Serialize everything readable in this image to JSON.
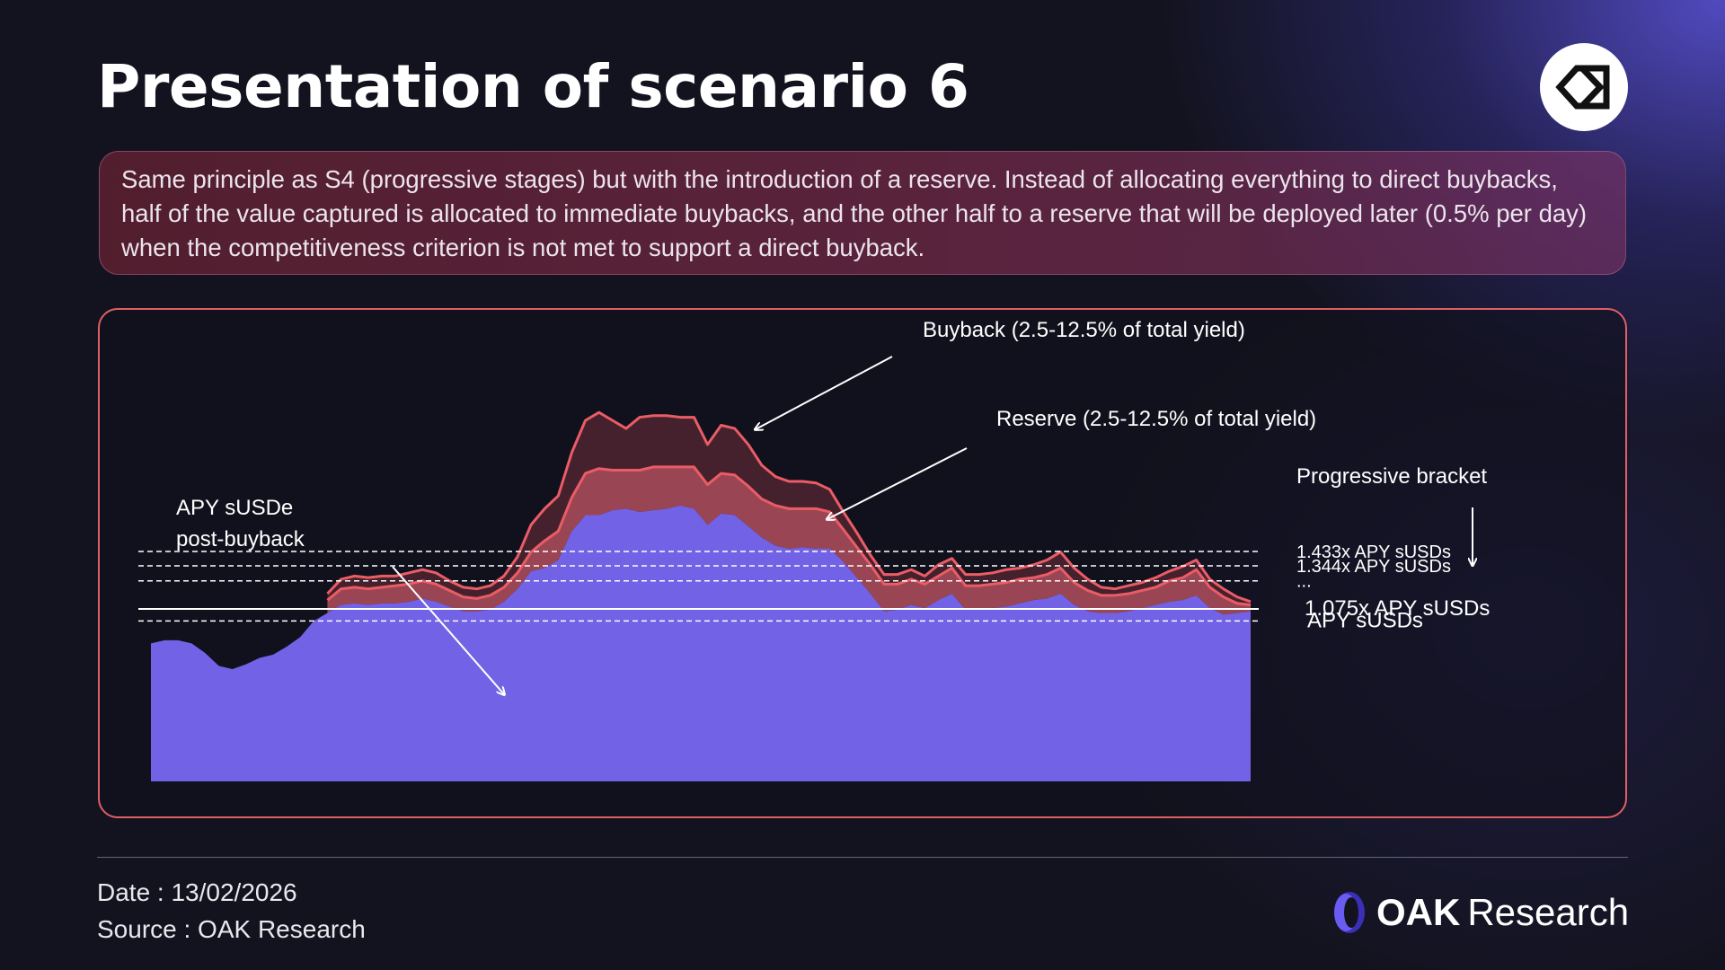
{
  "header": {
    "title": "Presentation of scenario 6"
  },
  "description": "Same principle as S4 (progressive stages) but with the introduction of a reserve. Instead of allocating everything to direct buybacks, half of the value captured is allocated to immediate buybacks, and the other half to a reserve that will be deployed later (0.5% per day) when the competitiveness criterion is not met to support a direct buyback.",
  "footer": {
    "date": "Date : 13/02/2026",
    "source": "Source : OAK Research",
    "brand_bold": "OAK",
    "brand_light": "Research"
  },
  "colors": {
    "apy_fill": "#7262e6",
    "reserve_fill": "#b34f5d",
    "buyback_fill": "#4e2530",
    "line_red": "#ea5c66",
    "accent_border": "#e05f63"
  },
  "chart_data": {
    "type": "area",
    "title": "",
    "xlabel": "",
    "ylabel": "",
    "x": [
      0,
      1,
      2,
      3,
      4,
      5,
      6,
      7,
      8,
      9,
      10,
      11,
      12,
      13,
      14,
      15,
      16,
      17,
      18,
      19,
      20,
      21,
      22,
      23,
      24,
      25,
      26,
      27,
      28,
      29,
      30,
      31,
      32,
      33,
      34,
      35,
      36,
      37,
      38,
      39,
      40,
      41,
      42,
      43,
      44,
      45,
      46,
      47,
      48,
      49,
      50,
      51,
      52,
      53,
      54,
      55,
      56,
      57,
      58,
      59,
      60,
      61,
      62,
      63,
      64,
      65,
      66,
      67,
      68,
      69,
      70,
      71,
      72,
      73,
      74,
      75,
      76,
      77,
      78,
      79,
      80,
      81
    ],
    "ylim": [
      0,
      3.5
    ],
    "reference_lines": [
      {
        "label": "1.433x APY sUSDs",
        "y": 1.433,
        "style": "dashed"
      },
      {
        "label": "1.344x APY sUSDs",
        "y": 1.344,
        "style": "dashed"
      },
      {
        "label": "...",
        "y": 1.25,
        "style": "dashed"
      },
      {
        "label": "1.075x APY sUSDs",
        "y": 1.075,
        "style": "solid"
      },
      {
        "label": "APY sUSDs",
        "y": 1.0,
        "style": "dashed"
      }
    ],
    "series": [
      {
        "name": "APY sUSDe post-buyback",
        "values": [
          0.86,
          0.88,
          0.88,
          0.86,
          0.8,
          0.72,
          0.7,
          0.73,
          0.77,
          0.79,
          0.84,
          0.9,
          1.0,
          1.05,
          1.1,
          1.11,
          1.1,
          1.11,
          1.11,
          1.12,
          1.14,
          1.12,
          1.09,
          1.06,
          1.06,
          1.07,
          1.12,
          1.2,
          1.31,
          1.33,
          1.38,
          1.56,
          1.66,
          1.66,
          1.69,
          1.7,
          1.68,
          1.69,
          1.7,
          1.72,
          1.7,
          1.6,
          1.67,
          1.66,
          1.59,
          1.52,
          1.47,
          1.45,
          1.46,
          1.45,
          1.45,
          1.37,
          1.27,
          1.17,
          1.06,
          1.07,
          1.1,
          1.08,
          1.13,
          1.17,
          1.07,
          1.07,
          1.08,
          1.09,
          1.11,
          1.13,
          1.14,
          1.17,
          1.1,
          1.06,
          1.05,
          1.05,
          1.06,
          1.08,
          1.1,
          1.12,
          1.13,
          1.16,
          1.08,
          1.04,
          1.05,
          1.06
        ]
      },
      {
        "name": "Reserve (2.5-12.5% of total yield)",
        "values": [
          null,
          null,
          null,
          null,
          null,
          null,
          null,
          null,
          null,
          null,
          null,
          null,
          null,
          1.13,
          1.2,
          1.21,
          1.2,
          1.21,
          1.22,
          1.23,
          1.25,
          1.23,
          1.19,
          1.15,
          1.14,
          1.16,
          1.21,
          1.3,
          1.43,
          1.5,
          1.56,
          1.77,
          1.92,
          1.95,
          1.94,
          1.94,
          1.94,
          1.96,
          1.96,
          1.96,
          1.96,
          1.85,
          1.92,
          1.91,
          1.84,
          1.76,
          1.72,
          1.7,
          1.7,
          1.7,
          1.68,
          1.57,
          1.46,
          1.35,
          1.23,
          1.23,
          1.26,
          1.23,
          1.28,
          1.33,
          1.22,
          1.22,
          1.23,
          1.24,
          1.26,
          1.27,
          1.29,
          1.33,
          1.24,
          1.19,
          1.16,
          1.16,
          1.17,
          1.19,
          1.21,
          1.25,
          1.27,
          1.32,
          1.21,
          1.15,
          1.11,
          1.1
        ]
      },
      {
        "name": "Buyback (2.5-12.5% of total yield)",
        "values": [
          null,
          null,
          null,
          null,
          null,
          null,
          null,
          null,
          null,
          null,
          null,
          null,
          null,
          1.17,
          1.26,
          1.28,
          1.27,
          1.28,
          1.28,
          1.3,
          1.32,
          1.3,
          1.25,
          1.21,
          1.2,
          1.22,
          1.28,
          1.4,
          1.6,
          1.7,
          1.78,
          2.05,
          2.25,
          2.3,
          2.25,
          2.2,
          2.27,
          2.28,
          2.28,
          2.27,
          2.27,
          2.1,
          2.22,
          2.2,
          2.1,
          1.97,
          1.9,
          1.87,
          1.87,
          1.86,
          1.82,
          1.68,
          1.55,
          1.41,
          1.29,
          1.29,
          1.32,
          1.28,
          1.35,
          1.39,
          1.29,
          1.29,
          1.3,
          1.32,
          1.33,
          1.35,
          1.38,
          1.43,
          1.33,
          1.26,
          1.21,
          1.2,
          1.22,
          1.24,
          1.27,
          1.31,
          1.34,
          1.38,
          1.26,
          1.2,
          1.15,
          1.12
        ]
      }
    ],
    "annotations": [
      {
        "text": "Buyback (2.5-12.5% of total yield)",
        "target": "buyback band"
      },
      {
        "text": "Reserve (2.5-12.5% of total yield)",
        "target": "reserve band"
      },
      {
        "text": "APY sUSDe",
        "text2": "post-buyback",
        "target": "APY area"
      },
      {
        "text": "Progressive bracket",
        "target": "reference lines"
      }
    ],
    "grid": false,
    "legend": "none"
  }
}
